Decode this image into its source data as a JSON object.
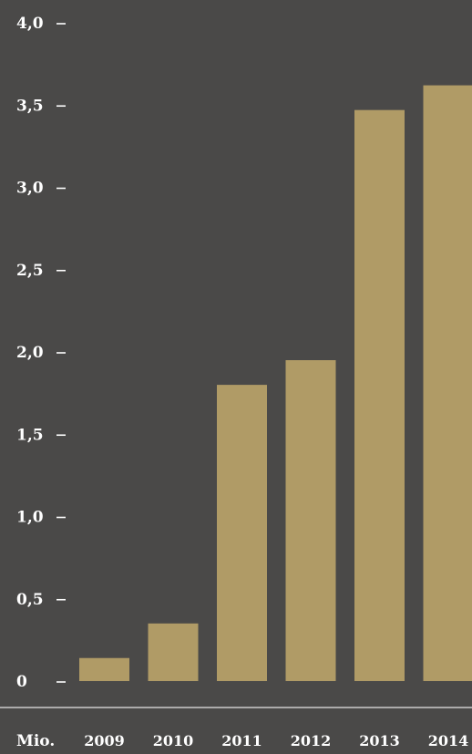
{
  "chart_data": {
    "type": "bar",
    "categories": [
      "2009",
      "2010",
      "2011",
      "2012",
      "2013",
      "2014"
    ],
    "values": [
      0.14,
      0.35,
      1.8,
      1.95,
      3.47,
      3.62
    ],
    "ylim": [
      0,
      4.0
    ],
    "y_ticks": [
      0,
      0.5,
      1.0,
      1.5,
      2.0,
      2.5,
      3.0,
      3.5,
      4.0
    ],
    "y_tick_labels": [
      "0",
      "0,5",
      "1,0",
      "1,5",
      "2,0",
      "2,5",
      "3,0",
      "3,5",
      "4,0"
    ],
    "unit_label": "Mio.",
    "grid": false,
    "colors": {
      "background": "#4a4948",
      "bar": "#b09b66",
      "text": "#ffffff",
      "baseline": "#e6e6e6"
    }
  }
}
